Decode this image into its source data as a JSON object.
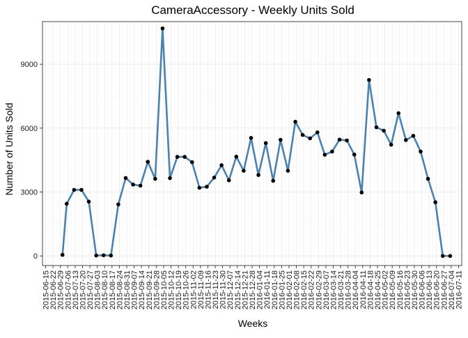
{
  "chart_data": {
    "type": "line",
    "title": "CameraAccessory - Weekly Units Sold",
    "xlabel": "Weeks",
    "ylabel": "Number of Units Sold",
    "ylim": [
      -450,
      11000
    ],
    "yticks": [
      0,
      3000,
      6000,
      9000
    ],
    "grid": true,
    "legend": "none",
    "colors": {
      "line": "#4682b4",
      "point": "#000000",
      "panel_border": "#333333",
      "grid_major": "#ebebeb",
      "grid_minor": "#f5f5f5"
    },
    "x_tick_labels": [
      "2015-06-15",
      "2015-06-22",
      "2015-06-29",
      "2015-07-06",
      "2015-07-13",
      "2015-07-20",
      "2015-07-27",
      "2015-08-03",
      "2015-08-10",
      "2015-08-17",
      "2015-08-24",
      "2015-08-31",
      "2015-09-07",
      "2015-09-14",
      "2015-09-21",
      "2015-09-28",
      "2015-10-05",
      "2015-10-12",
      "2015-10-19",
      "2015-10-26",
      "2015-11-02",
      "2015-11-09",
      "2015-11-16",
      "2015-11-23",
      "2015-11-30",
      "2015-12-07",
      "2015-12-14",
      "2015-12-21",
      "2015-12-28",
      "2016-01-04",
      "2016-01-11",
      "2016-01-18",
      "2016-01-25",
      "2016-02-01",
      "2016-02-08",
      "2016-02-15",
      "2016-02-22",
      "2016-02-29",
      "2016-03-07",
      "2016-03-14",
      "2016-03-21",
      "2016-03-28",
      "2016-04-04",
      "2016-04-11",
      "2016-04-18",
      "2016-04-25",
      "2016-05-02",
      "2016-05-09",
      "2016-05-16",
      "2016-05-23",
      "2016-05-30",
      "2016-06-06",
      "2016-06-13",
      "2016-06-20",
      "2016-06-27",
      "2016-07-04",
      "2016-07-11"
    ],
    "x": [
      "2015-07-01",
      "2015-07-05",
      "2015-07-12",
      "2015-07-19",
      "2015-07-26",
      "2015-08-02",
      "2015-08-09",
      "2015-08-16",
      "2015-08-23",
      "2015-08-30",
      "2015-09-06",
      "2015-09-13",
      "2015-09-20",
      "2015-09-27",
      "2015-10-04",
      "2015-10-11",
      "2015-10-18",
      "2015-10-25",
      "2015-11-01",
      "2015-11-08",
      "2015-11-15",
      "2015-11-22",
      "2015-11-29",
      "2015-12-06",
      "2015-12-13",
      "2015-12-20",
      "2015-12-27",
      "2016-01-03",
      "2016-01-10",
      "2016-01-17",
      "2016-01-24",
      "2016-01-31",
      "2016-02-07",
      "2016-02-14",
      "2016-02-21",
      "2016-02-28",
      "2016-03-06",
      "2016-03-13",
      "2016-03-20",
      "2016-03-27",
      "2016-04-03",
      "2016-04-10",
      "2016-04-17",
      "2016-04-24",
      "2016-05-01",
      "2016-05-08",
      "2016-05-15",
      "2016-05-22",
      "2016-05-29",
      "2016-06-05",
      "2016-06-12",
      "2016-06-19",
      "2016-06-26",
      "2016-07-03"
    ],
    "series": [
      {
        "values": [
          50,
          2450,
          3100,
          3100,
          2550,
          20,
          30,
          20,
          2420,
          3660,
          3350,
          3300,
          4420,
          3620,
          10680,
          3650,
          4650,
          4650,
          4400,
          3200,
          3250,
          3680,
          4260,
          3550,
          4660,
          4000,
          5540,
          3800,
          5300,
          3530,
          5450,
          4000,
          6300,
          5680,
          5520,
          5800,
          4750,
          4900,
          5460,
          5420,
          4760,
          2980,
          8260,
          6040,
          5880,
          5220,
          6700,
          5440,
          5640,
          4900,
          3620,
          2520,
          0,
          0
        ]
      }
    ]
  }
}
